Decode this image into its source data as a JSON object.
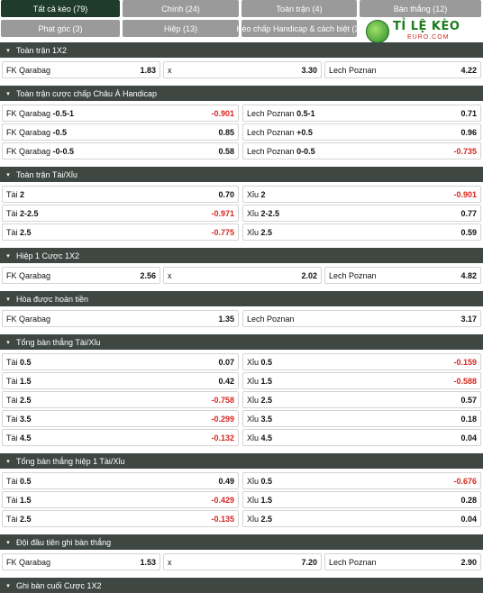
{
  "tabs": [
    {
      "label": "Tất cả kèo (79)",
      "active": true
    },
    {
      "label": "Chính (24)",
      "active": false
    },
    {
      "label": "Toàn trận (4)",
      "active": false
    },
    {
      "label": "Bàn thắng (12)",
      "active": false
    },
    {
      "label": "Phạt góc (3)",
      "active": false
    },
    {
      "label": "Hiệp (13)",
      "active": false
    },
    {
      "label": "Kèo chấp Handicap & cách biệt (3)",
      "active": false
    }
  ],
  "logo": {
    "brand": "TỈ LỆ KÈO",
    "sub": "EURO.COM"
  },
  "sections": [
    {
      "title": "Toàn trận 1X2",
      "rows": [
        [
          {
            "label": "FK Qarabag",
            "val": "",
            "odd": "1.83"
          },
          {
            "label": "x",
            "val": "",
            "odd": "3.30"
          },
          {
            "label": "Lech Poznan",
            "val": "",
            "odd": "4.22"
          }
        ]
      ]
    },
    {
      "title": "Toàn trận cược chấp Châu Á Handicap",
      "rows": [
        [
          {
            "label": "FK Qarabag",
            "val": "-0.5-1",
            "odd": "-0.901"
          },
          {
            "label": "Lech Poznan",
            "val": "0.5-1",
            "odd": "0.71"
          }
        ],
        [
          {
            "label": "FK Qarabag",
            "val": "-0.5",
            "odd": "0.85"
          },
          {
            "label": "Lech Poznan",
            "val": "+0.5",
            "odd": "0.96"
          }
        ],
        [
          {
            "label": "FK Qarabag",
            "val": "-0-0.5",
            "odd": "0.58"
          },
          {
            "label": "Lech Poznan",
            "val": "0-0.5",
            "odd": "-0.735"
          }
        ]
      ]
    },
    {
      "title": "Toàn trận Tài/Xỉu",
      "rows": [
        [
          {
            "label": "Tài",
            "val": "2",
            "odd": "0.70"
          },
          {
            "label": "Xỉu",
            "val": "2",
            "odd": "-0.901"
          }
        ],
        [
          {
            "label": "Tài",
            "val": "2-2.5",
            "odd": "-0.971"
          },
          {
            "label": "Xỉu",
            "val": "2-2.5",
            "odd": "0.77"
          }
        ],
        [
          {
            "label": "Tài",
            "val": "2.5",
            "odd": "-0.775"
          },
          {
            "label": "Xỉu",
            "val": "2.5",
            "odd": "0.59"
          }
        ]
      ]
    },
    {
      "title": "Hiệp 1 Cược 1X2",
      "rows": [
        [
          {
            "label": "FK Qarabag",
            "val": "",
            "odd": "2.56"
          },
          {
            "label": "x",
            "val": "",
            "odd": "2.02"
          },
          {
            "label": "Lech Poznan",
            "val": "",
            "odd": "4.82"
          }
        ]
      ]
    },
    {
      "title": "Hòa được hoàn tiền",
      "rows": [
        [
          {
            "label": "FK Qarabag",
            "val": "",
            "odd": "1.35"
          },
          {
            "label": "Lech Poznan",
            "val": "",
            "odd": "3.17"
          }
        ]
      ]
    },
    {
      "title": "Tổng bàn thắng Tài/Xỉu",
      "rows": [
        [
          {
            "label": "Tài",
            "val": "0.5",
            "odd": "0.07"
          },
          {
            "label": "Xỉu",
            "val": "0.5",
            "odd": "-0.159"
          }
        ],
        [
          {
            "label": "Tài",
            "val": "1.5",
            "odd": "0.42"
          },
          {
            "label": "Xỉu",
            "val": "1.5",
            "odd": "-0.588"
          }
        ],
        [
          {
            "label": "Tài",
            "val": "2.5",
            "odd": "-0.758"
          },
          {
            "label": "Xỉu",
            "val": "2.5",
            "odd": "0.57"
          }
        ],
        [
          {
            "label": "Tài",
            "val": "3.5",
            "odd": "-0.299"
          },
          {
            "label": "Xỉu",
            "val": "3.5",
            "odd": "0.18"
          }
        ],
        [
          {
            "label": "Tài",
            "val": "4.5",
            "odd": "-0.132"
          },
          {
            "label": "Xỉu",
            "val": "4.5",
            "odd": "0.04"
          }
        ]
      ]
    },
    {
      "title": "Tổng bàn thắng hiệp 1 Tài/Xỉu",
      "rows": [
        [
          {
            "label": "Tài",
            "val": "0.5",
            "odd": "0.49"
          },
          {
            "label": "Xỉu",
            "val": "0.5",
            "odd": "-0.676"
          }
        ],
        [
          {
            "label": "Tài",
            "val": "1.5",
            "odd": "-0.429"
          },
          {
            "label": "Xỉu",
            "val": "1.5",
            "odd": "0.28"
          }
        ],
        [
          {
            "label": "Tài",
            "val": "2.5",
            "odd": "-0.135"
          },
          {
            "label": "Xỉu",
            "val": "2.5",
            "odd": "0.04"
          }
        ]
      ]
    },
    {
      "title": "Đội đầu tiên ghi bàn thắng",
      "rows": [
        [
          {
            "label": "FK Qarabag",
            "val": "",
            "odd": "1.53"
          },
          {
            "label": "x",
            "val": "",
            "odd": "7.20"
          },
          {
            "label": "Lech Poznan",
            "val": "",
            "odd": "2.90"
          }
        ]
      ]
    },
    {
      "title": "Ghi bàn cuối Cược 1X2",
      "rows": []
    }
  ],
  "colors": {
    "accent": "#1e3b2b",
    "header": "#3f4743",
    "tab": "#9a9a9a",
    "negative": "#d6261f"
  },
  "icons": {
    "caret": "caret-down-icon",
    "logo": "soccer-ball-icon"
  }
}
